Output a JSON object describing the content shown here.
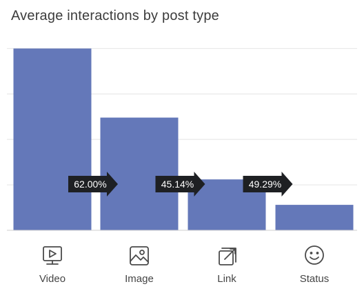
{
  "chart_data": {
    "type": "bar",
    "title": "Average interactions by post type",
    "categories": [
      "Video",
      "Image",
      "Link",
      "Status"
    ],
    "values": [
      100,
      62,
      28,
      14
    ],
    "value_scale": "relative",
    "ylim": [
      0,
      110
    ],
    "grid": true,
    "legend": "none",
    "transitions": [
      {
        "from": "Video",
        "to": "Image",
        "label": "62.00%"
      },
      {
        "from": "Image",
        "to": "Link",
        "label": "45.14%"
      },
      {
        "from": "Link",
        "to": "Status",
        "label": "49.29%"
      }
    ],
    "icons": [
      "play-screen-icon",
      "image-icon",
      "link-icon",
      "smiley-icon"
    ]
  },
  "colors": {
    "bar": "#6478b9",
    "arrow": "#1e2023",
    "grid": "#e4e4e4",
    "axis": "#cfcfcf"
  }
}
